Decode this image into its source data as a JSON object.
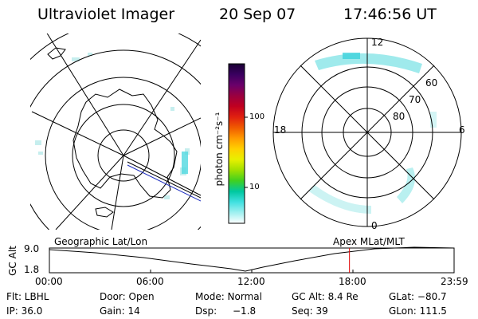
{
  "header": {
    "title": "Ultraviolet Imager",
    "date": "20 Sep 07",
    "time": "17:46:56 UT"
  },
  "colorbar": {
    "unit_label": "photon cm⁻²s⁻¹",
    "ticks": [
      "100",
      "10"
    ],
    "colors": [
      "#1a0033",
      "#3a0060",
      "#6a006a",
      "#9a0040",
      "#c00020",
      "#e02010",
      "#f05a00",
      "#ff9a00",
      "#ffd000",
      "#e8f000",
      "#a0e000",
      "#40d020",
      "#00c8a0",
      "#40e0e0",
      "#a0f0f0",
      "#ffffff"
    ]
  },
  "polar_plot": {
    "labels": {
      "top": "12",
      "left": "18",
      "right": "6",
      "bottom": "0",
      "ring_60": "60",
      "ring_70": "70",
      "ring_80": "80"
    }
  },
  "timeline": {
    "ylabel": "GC Alt",
    "y_ticks": [
      "9.0",
      "1.8"
    ],
    "left_title": "Geographic Lat/Lon",
    "right_title": "Apex MLat/MLT",
    "x_ticks": [
      "00:00",
      "06:00",
      "12:00",
      "18:00",
      "23:59"
    ],
    "marker_time": "17:46:56",
    "marker_color": "#e00000"
  },
  "info": {
    "flt": "Flt: LBHL",
    "ip": "IP: 36.0",
    "door": "Door: Open",
    "gain": "Gain: 14",
    "mode": "Mode: Normal",
    "dsp_label": "Dsp:",
    "dsp_value": "−1.8",
    "gc_alt": "GC Alt: 8.4 Re",
    "seq": "Seq: 39",
    "glat": "GLat: −80.7",
    "glon": "GLon: 111.5"
  }
}
